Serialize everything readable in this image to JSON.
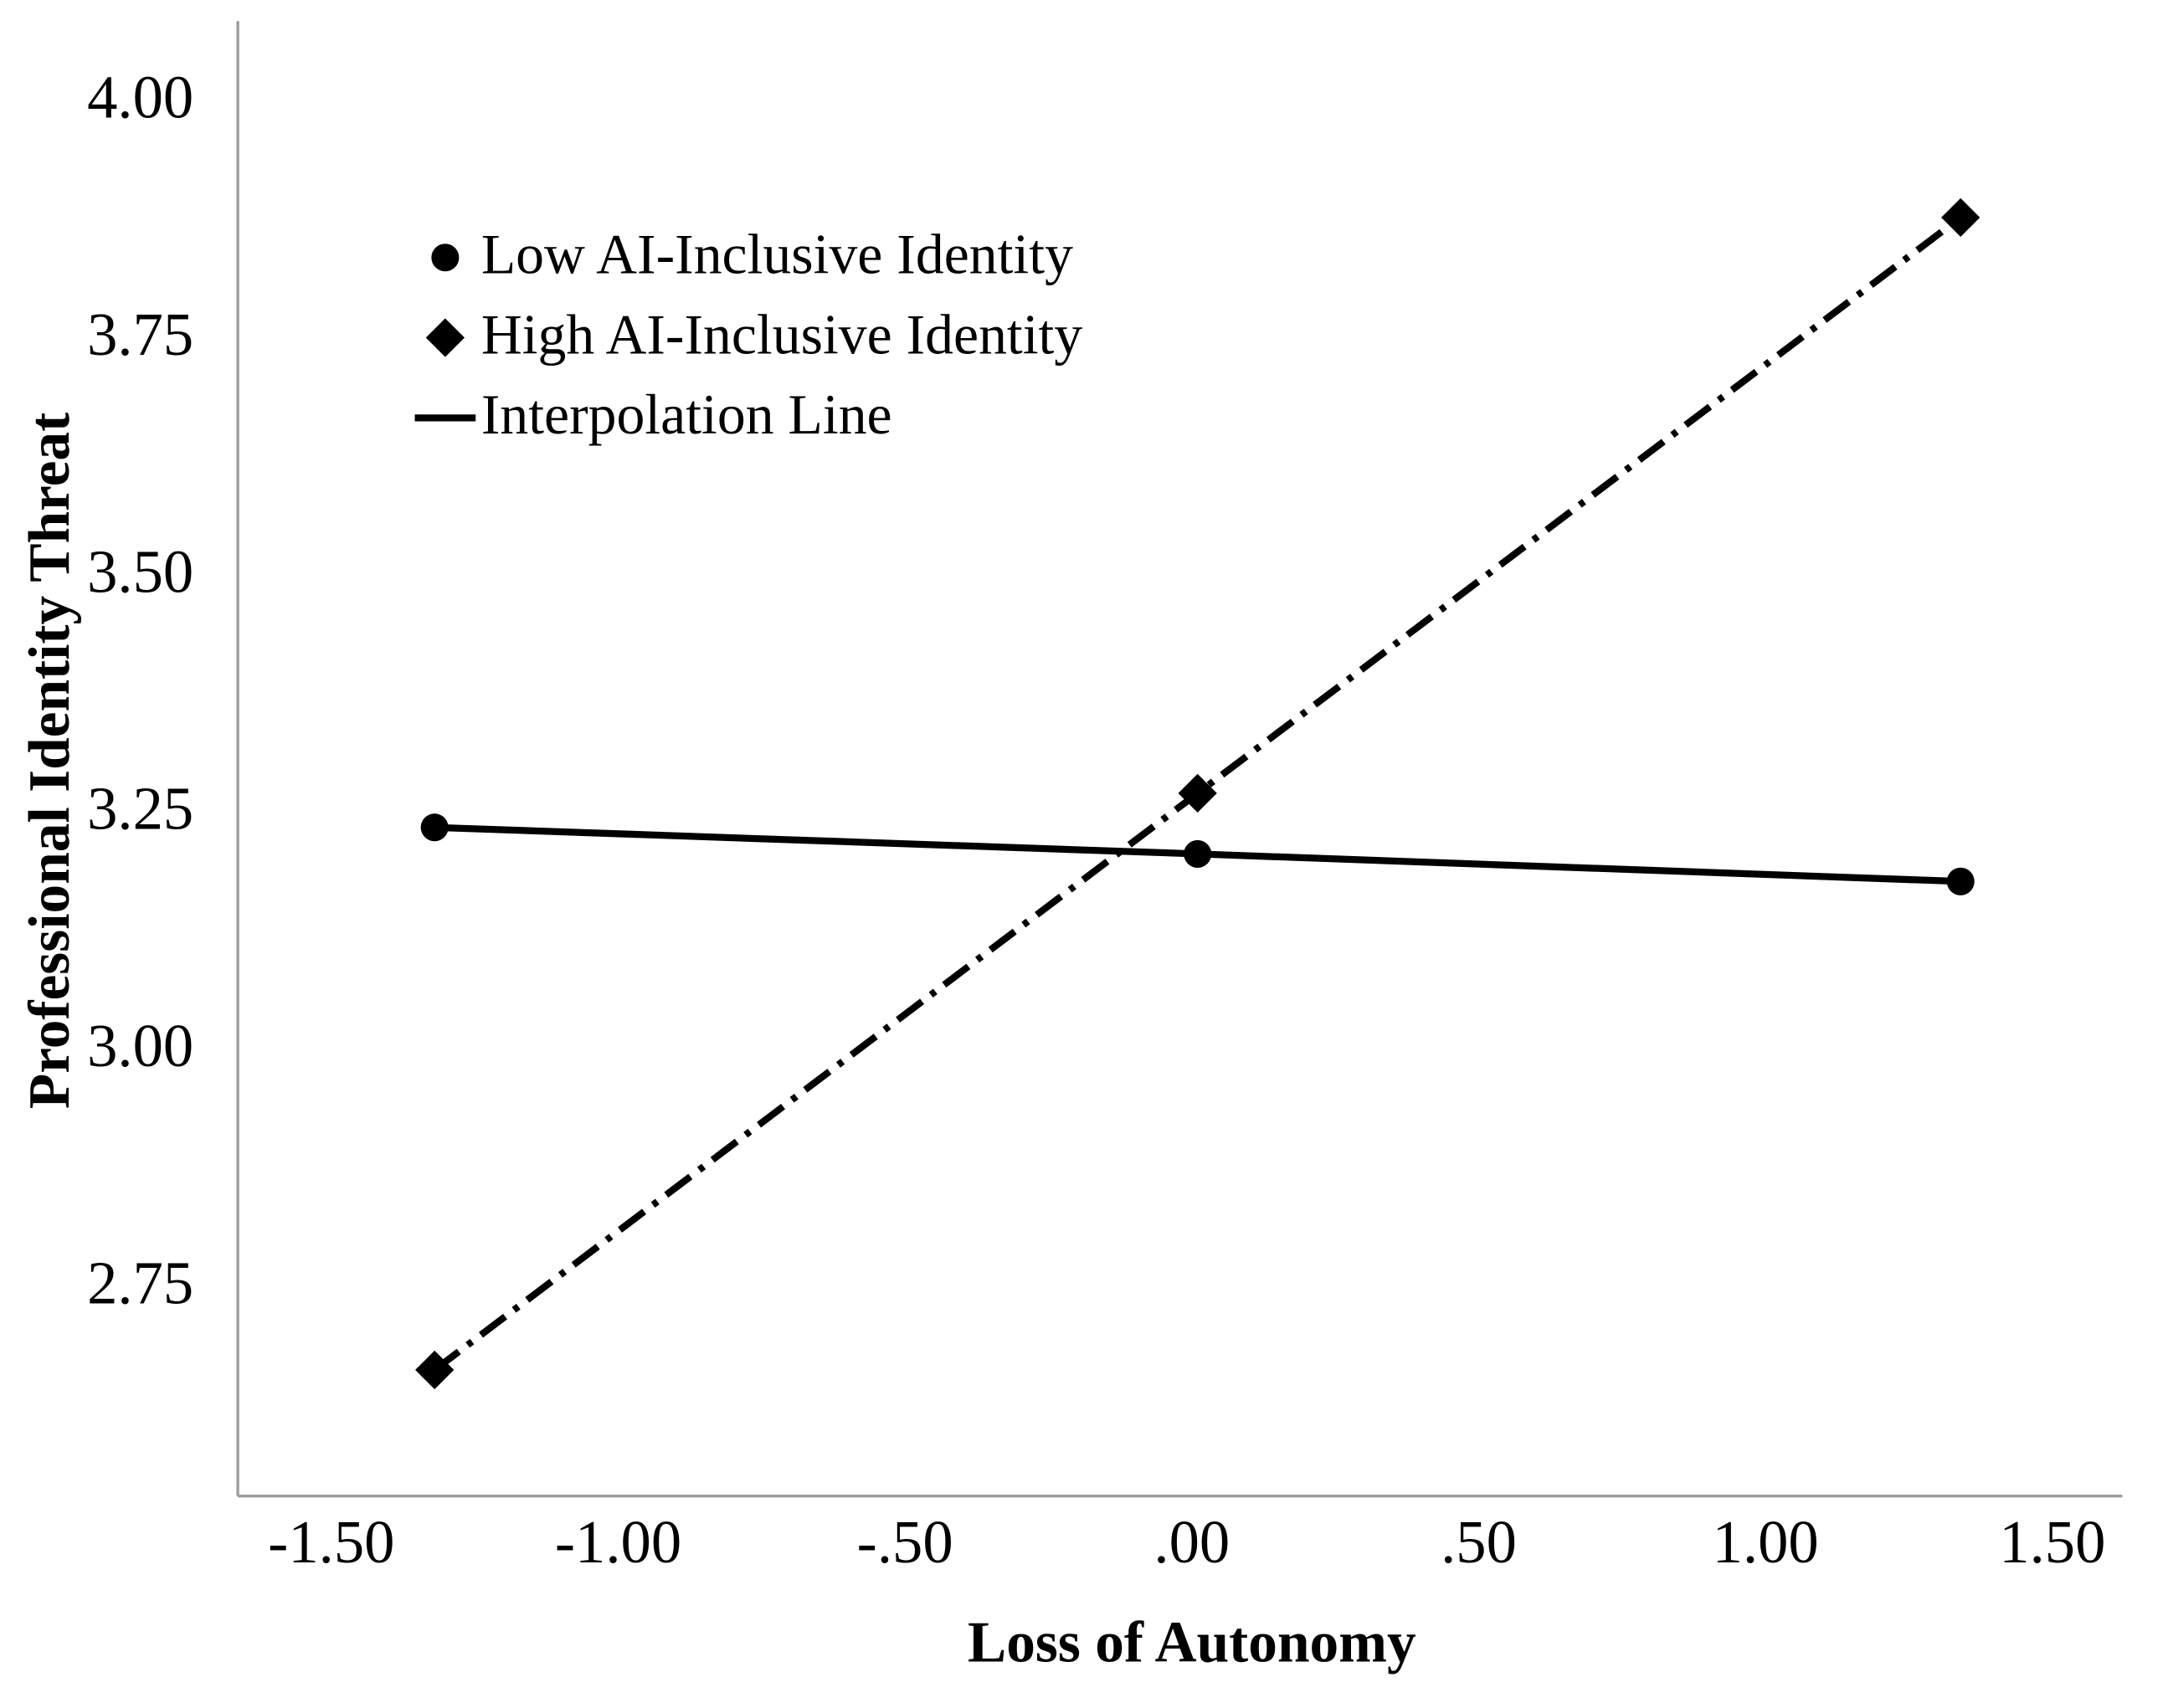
{
  "chart_data": {
    "type": "line",
    "x_label": "Loss of Autonomy",
    "y_label": "Professional Identity Threat",
    "x": [
      -1.32,
      0.01,
      1.34
    ],
    "series": [
      {
        "name": "Low AI-Inclusive Identity",
        "color": "#000000",
        "marker": "circle",
        "dash": "solid",
        "values": [
          3.237,
          3.209,
          3.18
        ]
      },
      {
        "name": "High AI-Inclusive Identity",
        "color": "#000000",
        "marker": "diamond",
        "dash": "dashdot",
        "values": [
          2.665,
          3.273,
          3.88
        ]
      }
    ],
    "interpolation_legend": "Interpolation Line",
    "xlim": [
      -1.663,
      1.622
    ],
    "ylim": [
      2.532,
      4.087
    ],
    "xticks": [
      {
        "value": -1.5,
        "label": "-1.50"
      },
      {
        "value": -1,
        "label": "-1.00"
      },
      {
        "value": -0.5,
        "label": "-.50"
      },
      {
        "value": 0,
        "label": ".00"
      },
      {
        "value": 0.5,
        "label": ".50"
      },
      {
        "value": 1,
        "label": "1.00"
      },
      {
        "value": 1.5,
        "label": "1.50"
      }
    ],
    "yticks": [
      {
        "value": 2.75,
        "label": "2.75"
      },
      {
        "value": 3,
        "label": "3.00"
      },
      {
        "value": 3.25,
        "label": "3.25"
      },
      {
        "value": 3.5,
        "label": "3.50"
      },
      {
        "value": 3.75,
        "label": "3.75"
      },
      {
        "value": 4,
        "label": "4.00"
      }
    ],
    "grid": false,
    "legend": "upper left"
  }
}
